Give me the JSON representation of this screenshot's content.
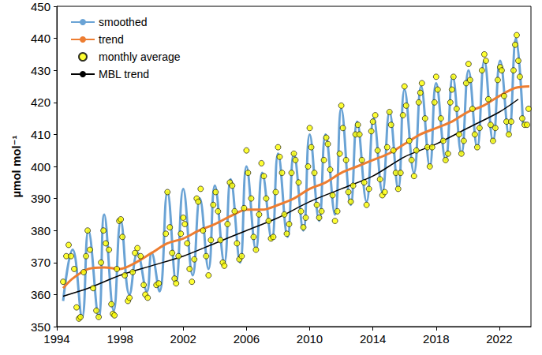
{
  "chart_data": {
    "type": "line",
    "ylabel": "µmol mol⁻¹",
    "xlim": [
      1994,
      2024
    ],
    "xticks": [
      1994,
      1998,
      2002,
      2006,
      2010,
      2014,
      2018,
      2022
    ],
    "ylim": [
      350,
      450
    ],
    "yticks": [
      350,
      360,
      370,
      380,
      390,
      400,
      410,
      420,
      430,
      440,
      450
    ],
    "grid": false,
    "legend": "upper left",
    "series": [
      {
        "name": "smoothed",
        "type": "line",
        "color": "#6aa3d5",
        "line_style": "solid",
        "x": [
          1994.4,
          1995.0,
          1995.6,
          1996.0,
          1996.65,
          1997.0,
          1997.6,
          1998.05,
          1998.6,
          1999.1,
          1999.7,
          2000.0,
          2000.5,
          2001.0,
          2001.55,
          2002.0,
          2002.6,
          2003.05,
          2003.6,
          2004.0,
          2004.6,
          2005.0,
          2005.6,
          2006.0,
          2006.6,
          2007.0,
          2007.6,
          2008.0,
          2008.6,
          2009.0,
          2009.6,
          2010.0,
          2010.6,
          2011.0,
          2011.6,
          2012.0,
          2012.6,
          2013.0,
          2013.6,
          2014.05,
          2014.6,
          2015.05,
          2015.6,
          2016.0,
          2016.6,
          2017.05,
          2017.6,
          2018.0,
          2018.6,
          2019.05,
          2019.6,
          2020.05,
          2020.6,
          2021.05,
          2021.6,
          2022.05,
          2022.6,
          2023.05,
          2023.5
        ],
        "values": [
          358,
          374,
          353,
          380,
          353,
          385,
          355,
          383,
          360,
          373,
          361,
          373,
          361,
          392,
          364,
          393,
          366,
          390,
          368,
          394,
          370,
          396,
          370,
          400,
          374,
          398,
          377,
          404,
          378,
          404,
          380,
          410,
          383,
          410,
          385,
          418,
          388,
          414,
          389,
          415,
          392,
          417,
          393,
          424,
          398,
          425,
          400,
          426,
          402,
          428,
          404,
          430,
          406,
          433,
          408,
          433,
          410,
          440,
          413
        ]
      },
      {
        "name": "trend",
        "type": "line",
        "color": "#ed7d31",
        "line_style": "solid",
        "x": [
          1994.4,
          1995,
          1996,
          1997,
          1998,
          1999,
          2000,
          2001,
          2002,
          2003,
          2004,
          2005,
          2006,
          2007,
          2008,
          2009,
          2010,
          2011,
          2012,
          2013,
          2014,
          2015,
          2016,
          2017,
          2018,
          2019,
          2020,
          2021,
          2022,
          2023,
          2023.9
        ],
        "values": [
          362,
          365,
          368,
          368.5,
          368,
          370,
          373,
          376,
          377.5,
          380,
          382,
          384.5,
          386.5,
          386.5,
          388,
          390,
          393,
          395,
          398,
          400,
          402,
          404,
          407,
          410,
          412,
          414,
          417,
          419,
          422,
          424.5,
          425
        ]
      },
      {
        "name": "monthly average",
        "type": "scatter",
        "color": "#ffff00",
        "marker": "circle",
        "x": [
          1994.4,
          1994.6,
          1994.75,
          1994.9,
          1995.1,
          1995.25,
          1995.4,
          1995.5,
          1995.7,
          1995.85,
          1995.95,
          1996.1,
          1996.3,
          1996.5,
          1996.65,
          1996.8,
          1996.95,
          1997.1,
          1997.3,
          1997.45,
          1997.55,
          1997.65,
          1997.8,
          1997.95,
          1998.05,
          1998.15,
          1998.3,
          1998.5,
          1998.6,
          1998.8,
          1998.95,
          1999.1,
          1999.3,
          1999.5,
          1999.6,
          1999.75,
          2000.3,
          2000.45,
          2000.9,
          2001.0,
          2001.15,
          2001.3,
          2001.45,
          2001.55,
          2001.7,
          2001.85,
          2002.0,
          2002.1,
          2002.25,
          2002.4,
          2002.55,
          2002.7,
          2002.85,
          2002.95,
          2003.1,
          2003.25,
          2003.45,
          2003.6,
          2003.75,
          2003.9,
          2004.05,
          2004.2,
          2004.35,
          2004.5,
          2004.6,
          2004.8,
          2004.95,
          2005.1,
          2005.25,
          2005.4,
          2005.55,
          2005.7,
          2005.85,
          2006.0,
          2006.1,
          2006.3,
          2006.45,
          2006.6,
          2006.8,
          2006.95,
          2007.1,
          2007.25,
          2007.4,
          2007.55,
          2007.7,
          2007.85,
          2008.0,
          2008.1,
          2008.25,
          2008.4,
          2008.55,
          2008.7,
          2008.85,
          2009.0,
          2009.1,
          2009.3,
          2009.45,
          2009.6,
          2009.75,
          2009.9,
          2010.0,
          2010.1,
          2010.3,
          2010.45,
          2010.6,
          2010.75,
          2010.9,
          2011.05,
          2011.15,
          2011.3,
          2011.45,
          2011.6,
          2011.75,
          2011.9,
          2012.0,
          2012.1,
          2012.3,
          2012.45,
          2012.6,
          2012.75,
          2012.9,
          2013.05,
          2013.15,
          2013.3,
          2013.45,
          2013.6,
          2013.75,
          2013.9,
          2014.0,
          2014.15,
          2014.3,
          2014.45,
          2014.6,
          2014.75,
          2014.9,
          2015.05,
          2015.15,
          2015.3,
          2015.45,
          2015.6,
          2015.75,
          2015.9,
          2016.0,
          2016.1,
          2016.3,
          2016.45,
          2016.6,
          2016.75,
          2016.9,
          2017.0,
          2017.1,
          2017.3,
          2017.45,
          2017.6,
          2017.75,
          2017.9,
          2018.0,
          2018.1,
          2018.3,
          2018.45,
          2018.6,
          2018.75,
          2018.9,
          2019.0,
          2019.1,
          2019.3,
          2019.45,
          2019.6,
          2019.75,
          2019.9,
          2020.05,
          2020.15,
          2020.3,
          2020.45,
          2020.6,
          2020.75,
          2020.9,
          2021.05,
          2021.15,
          2021.3,
          2021.45,
          2021.6,
          2021.75,
          2021.9,
          2022.05,
          2022.15,
          2022.3,
          2022.45,
          2022.6,
          2022.75,
          2022.9,
          2023.0,
          2023.1,
          2023.2,
          2023.3,
          2023.45,
          2023.6,
          2023.75,
          2023.85
        ],
        "values": [
          364,
          372,
          375.5,
          372,
          368,
          356,
          352.5,
          353,
          367,
          372,
          380,
          374,
          362,
          355,
          353,
          370,
          380,
          376,
          374,
          357,
          354,
          353.5,
          368,
          383,
          383.5,
          378,
          366,
          358,
          359,
          367,
          373,
          374.5,
          372,
          363,
          360,
          359,
          363,
          363.5,
          379,
          392,
          381,
          373,
          365,
          363.5,
          372,
          379,
          384,
          382,
          376,
          368,
          364,
          371,
          390,
          389,
          393,
          380,
          372,
          366,
          377,
          388,
          392,
          386,
          377,
          370,
          369,
          382,
          395,
          394,
          386,
          376,
          371,
          372,
          387,
          405,
          398,
          390,
          378,
          374,
          385,
          401,
          397,
          390,
          383,
          377.5,
          378,
          392,
          406,
          403,
          398,
          385,
          379,
          382,
          398,
          404,
          402,
          395,
          386,
          381,
          384,
          400,
          412,
          406,
          398,
          388,
          384,
          386,
          402,
          409,
          407,
          399,
          391,
          383,
          386,
          404,
          419,
          412,
          402,
          392,
          389,
          394,
          410,
          413,
          410,
          402,
          395,
          388,
          393,
          411,
          414,
          416,
          405,
          396,
          391,
          392,
          406,
          417,
          413,
          405,
          398,
          393,
          398,
          416,
          425,
          419,
          408,
          402,
          397,
          405,
          420,
          423,
          426,
          415,
          406,
          400,
          406,
          420,
          428,
          424,
          415,
          408,
          402,
          404,
          420,
          424,
          428,
          418,
          410,
          404,
          408,
          426,
          432,
          427,
          418,
          410,
          406,
          412,
          430,
          435,
          433,
          421,
          413,
          408,
          412,
          427,
          431,
          430,
          422,
          414,
          410,
          414,
          430,
          438,
          441,
          433,
          428,
          415,
          413,
          413,
          418
        ]
      },
      {
        "name": "MBL trend",
        "type": "line",
        "color": "#000000",
        "line_style": "solid",
        "x": [
          1994.4,
          1996,
          1998,
          2000,
          2002,
          2004,
          2006,
          2008,
          2010,
          2012,
          2014,
          2016,
          2018,
          2020,
          2022,
          2023.2
        ],
        "values": [
          359.5,
          362,
          366,
          369,
          372,
          376,
          380,
          384,
          389,
          393,
          397,
          403,
          407,
          412,
          417,
          421
        ]
      }
    ]
  }
}
